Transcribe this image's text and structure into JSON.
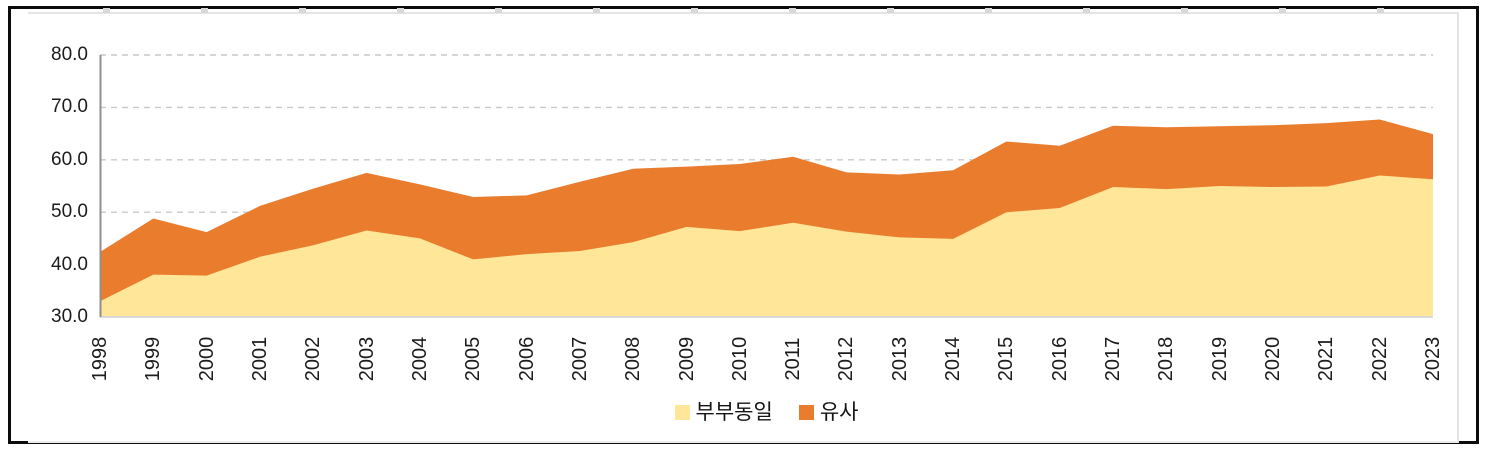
{
  "chart_data": {
    "type": "area",
    "stacked": true,
    "title": "",
    "xlabel": "",
    "ylabel": "",
    "categories": [
      "1998",
      "1999",
      "2000",
      "2001",
      "2002",
      "2003",
      "2004",
      "2005",
      "2006",
      "2007",
      "2008",
      "2009",
      "2010",
      "2011",
      "2012",
      "2013",
      "2014",
      "2015",
      "2016",
      "2017",
      "2018",
      "2019",
      "2020",
      "2021",
      "2022",
      "2023"
    ],
    "series": [
      {
        "name": "부부동일",
        "color": "#FFE699",
        "values": [
          33.0,
          38.1,
          37.9,
          41.5,
          43.7,
          46.5,
          45.0,
          41.0,
          42.0,
          42.6,
          44.3,
          47.2,
          46.4,
          48.0,
          46.3,
          45.2,
          44.9,
          50.0,
          50.8,
          54.8,
          54.4,
          55.0,
          54.8,
          54.9,
          57.0,
          56.3
        ]
      },
      {
        "name": "유사",
        "color": "#EA7C2E",
        "values": [
          9.4,
          10.7,
          8.3,
          9.7,
          10.8,
          11.0,
          10.3,
          11.9,
          11.2,
          13.2,
          14.0,
          11.5,
          12.8,
          12.6,
          11.3,
          12.0,
          13.1,
          13.5,
          11.9,
          11.7,
          11.8,
          11.4,
          11.8,
          12.1,
          10.7,
          8.6
        ]
      }
    ],
    "stacked_totals": [
      42.4,
      48.8,
      46.2,
      51.2,
      54.5,
      57.5,
      55.3,
      52.9,
      53.2,
      55.8,
      58.3,
      58.7,
      59.2,
      60.6,
      57.6,
      57.2,
      58.0,
      63.5,
      62.7,
      66.5,
      66.2,
      66.4,
      66.6,
      67.0,
      67.7,
      64.9
    ],
    "ylim": [
      30,
      80
    ],
    "ytick_labels": [
      "80.0",
      "70.0",
      "60.0",
      "50.0",
      "40.0",
      "30.0"
    ],
    "ytick_values": [
      80,
      70,
      60,
      50,
      40,
      30
    ],
    "grid": "horizontal-dashed",
    "legend_position": "bottom-center"
  },
  "legend": {
    "items": [
      {
        "label": "부부동일",
        "color": "#FFE699"
      },
      {
        "label": "유사",
        "color": "#EA7C2E"
      }
    ]
  },
  "colors": {
    "series_bottom": "#FFE699",
    "series_top": "#EA7C2E",
    "gridline": "#c9c9c9",
    "y_axis_line": "#8f8f8f",
    "x_axis_line": "#d9d9d9",
    "tick_text": "#1c1c1c",
    "frame": "#e4e4e4",
    "outer_border": "#0c0c0c"
  }
}
